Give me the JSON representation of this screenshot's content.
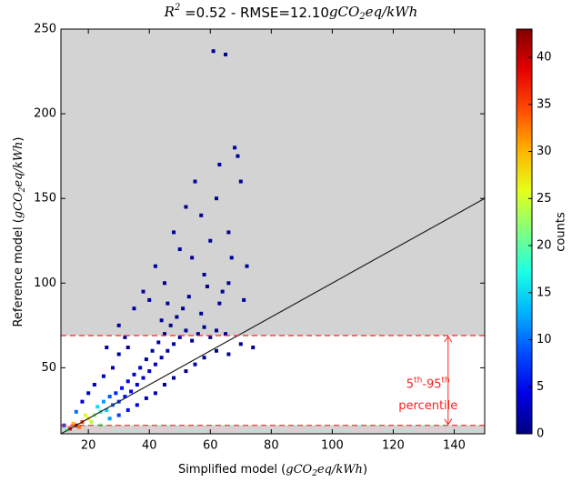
{
  "chart_data": {
    "type": "scatter",
    "title": [
      "R",
      "2",
      " =0.52 - RMSE=12.10",
      "gCO",
      "2",
      "eq/kWh"
    ],
    "x_label": [
      "Simplified model (",
      "gCO",
      "2",
      "eq/kWh",
      ")"
    ],
    "y_label": [
      "Reference model (",
      "gCO",
      "2",
      "eq/kWh",
      ")"
    ],
    "colorbar_label": "counts",
    "xlim": [
      11,
      150
    ],
    "ylim": [
      11,
      250
    ],
    "xticks": [
      20,
      40,
      60,
      80,
      100,
      120,
      140
    ],
    "yticks": [
      50,
      100,
      150,
      200,
      250
    ],
    "clim": [
      0,
      43
    ],
    "cticks": [
      0,
      5,
      10,
      15,
      20,
      25,
      30,
      35,
      40
    ],
    "colormap": "jet",
    "background": "#d3d3d3",
    "band_color": "#ffffff",
    "percentile_lines": [
      16,
      69
    ],
    "percentile_color": "#ff2020",
    "annotation": [
      "5",
      "th",
      "-95",
      "th",
      "percentile"
    ],
    "annotation_x": 138,
    "reference_line": {
      "color": "#222222",
      "x": [
        11,
        150
      ],
      "y": [
        11,
        150
      ]
    },
    "x": [
      14,
      16,
      18,
      15,
      17,
      20,
      22,
      19,
      21,
      24,
      23,
      26,
      25,
      28,
      27,
      30,
      29,
      32,
      31,
      34,
      33,
      36,
      35,
      38,
      37,
      40,
      39,
      42,
      41,
      44,
      43,
      46,
      45,
      48,
      47,
      50,
      52,
      49,
      54,
      56,
      58,
      60,
      62,
      65,
      70,
      74,
      22,
      25,
      28,
      30,
      33,
      18,
      20,
      24,
      27,
      30,
      33,
      36,
      39,
      42,
      45,
      48,
      52,
      55,
      58,
      62,
      66,
      16,
      13,
      12,
      38,
      42,
      45,
      48,
      50,
      52,
      54,
      55,
      57,
      58,
      60,
      62,
      63,
      64,
      66,
      68,
      69,
      70,
      72,
      67,
      61,
      65,
      35,
      40,
      46,
      53,
      59,
      44,
      51,
      57,
      63,
      66,
      71,
      30,
      26,
      32
    ],
    "y": [
      14,
      16,
      18,
      17,
      15,
      20,
      22,
      22,
      18,
      24,
      27,
      25,
      30,
      28,
      33,
      30,
      35,
      33,
      38,
      36,
      42,
      40,
      46,
      44,
      50,
      48,
      55,
      52,
      60,
      56,
      65,
      60,
      70,
      64,
      75,
      68,
      72,
      80,
      66,
      70,
      74,
      68,
      72,
      70,
      64,
      62,
      40,
      45,
      50,
      58,
      62,
      30,
      35,
      16,
      20,
      22,
      25,
      28,
      32,
      35,
      40,
      44,
      48,
      52,
      56,
      60,
      58,
      24,
      13,
      16,
      95,
      110,
      100,
      130,
      120,
      145,
      115,
      160,
      140,
      105,
      125,
      150,
      170,
      95,
      130,
      180,
      175,
      160,
      110,
      115,
      237,
      235,
      85,
      90,
      88,
      92,
      98,
      78,
      85,
      82,
      88,
      100,
      90,
      75,
      62,
      68
    ],
    "counts": [
      38,
      42,
      35,
      30,
      33,
      28,
      22,
      25,
      24,
      18,
      15,
      14,
      12,
      10,
      9,
      8,
      7,
      6,
      6,
      5,
      5,
      4,
      4,
      3,
      3,
      3,
      2,
      2,
      2,
      2,
      2,
      1,
      1,
      1,
      1,
      1,
      1,
      1,
      1,
      1,
      1,
      1,
      1,
      1,
      1,
      1,
      3,
      2,
      2,
      1,
      1,
      4,
      3,
      20,
      12,
      8,
      6,
      4,
      3,
      2,
      2,
      1,
      1,
      1,
      1,
      1,
      1,
      10,
      20,
      8,
      1,
      1,
      1,
      1,
      1,
      1,
      1,
      1,
      1,
      1,
      1,
      1,
      1,
      1,
      1,
      1,
      1,
      1,
      1,
      1,
      1,
      1,
      1,
      1,
      1,
      1,
      1,
      1,
      1,
      1,
      1,
      1,
      1,
      1,
      1,
      1
    ]
  }
}
